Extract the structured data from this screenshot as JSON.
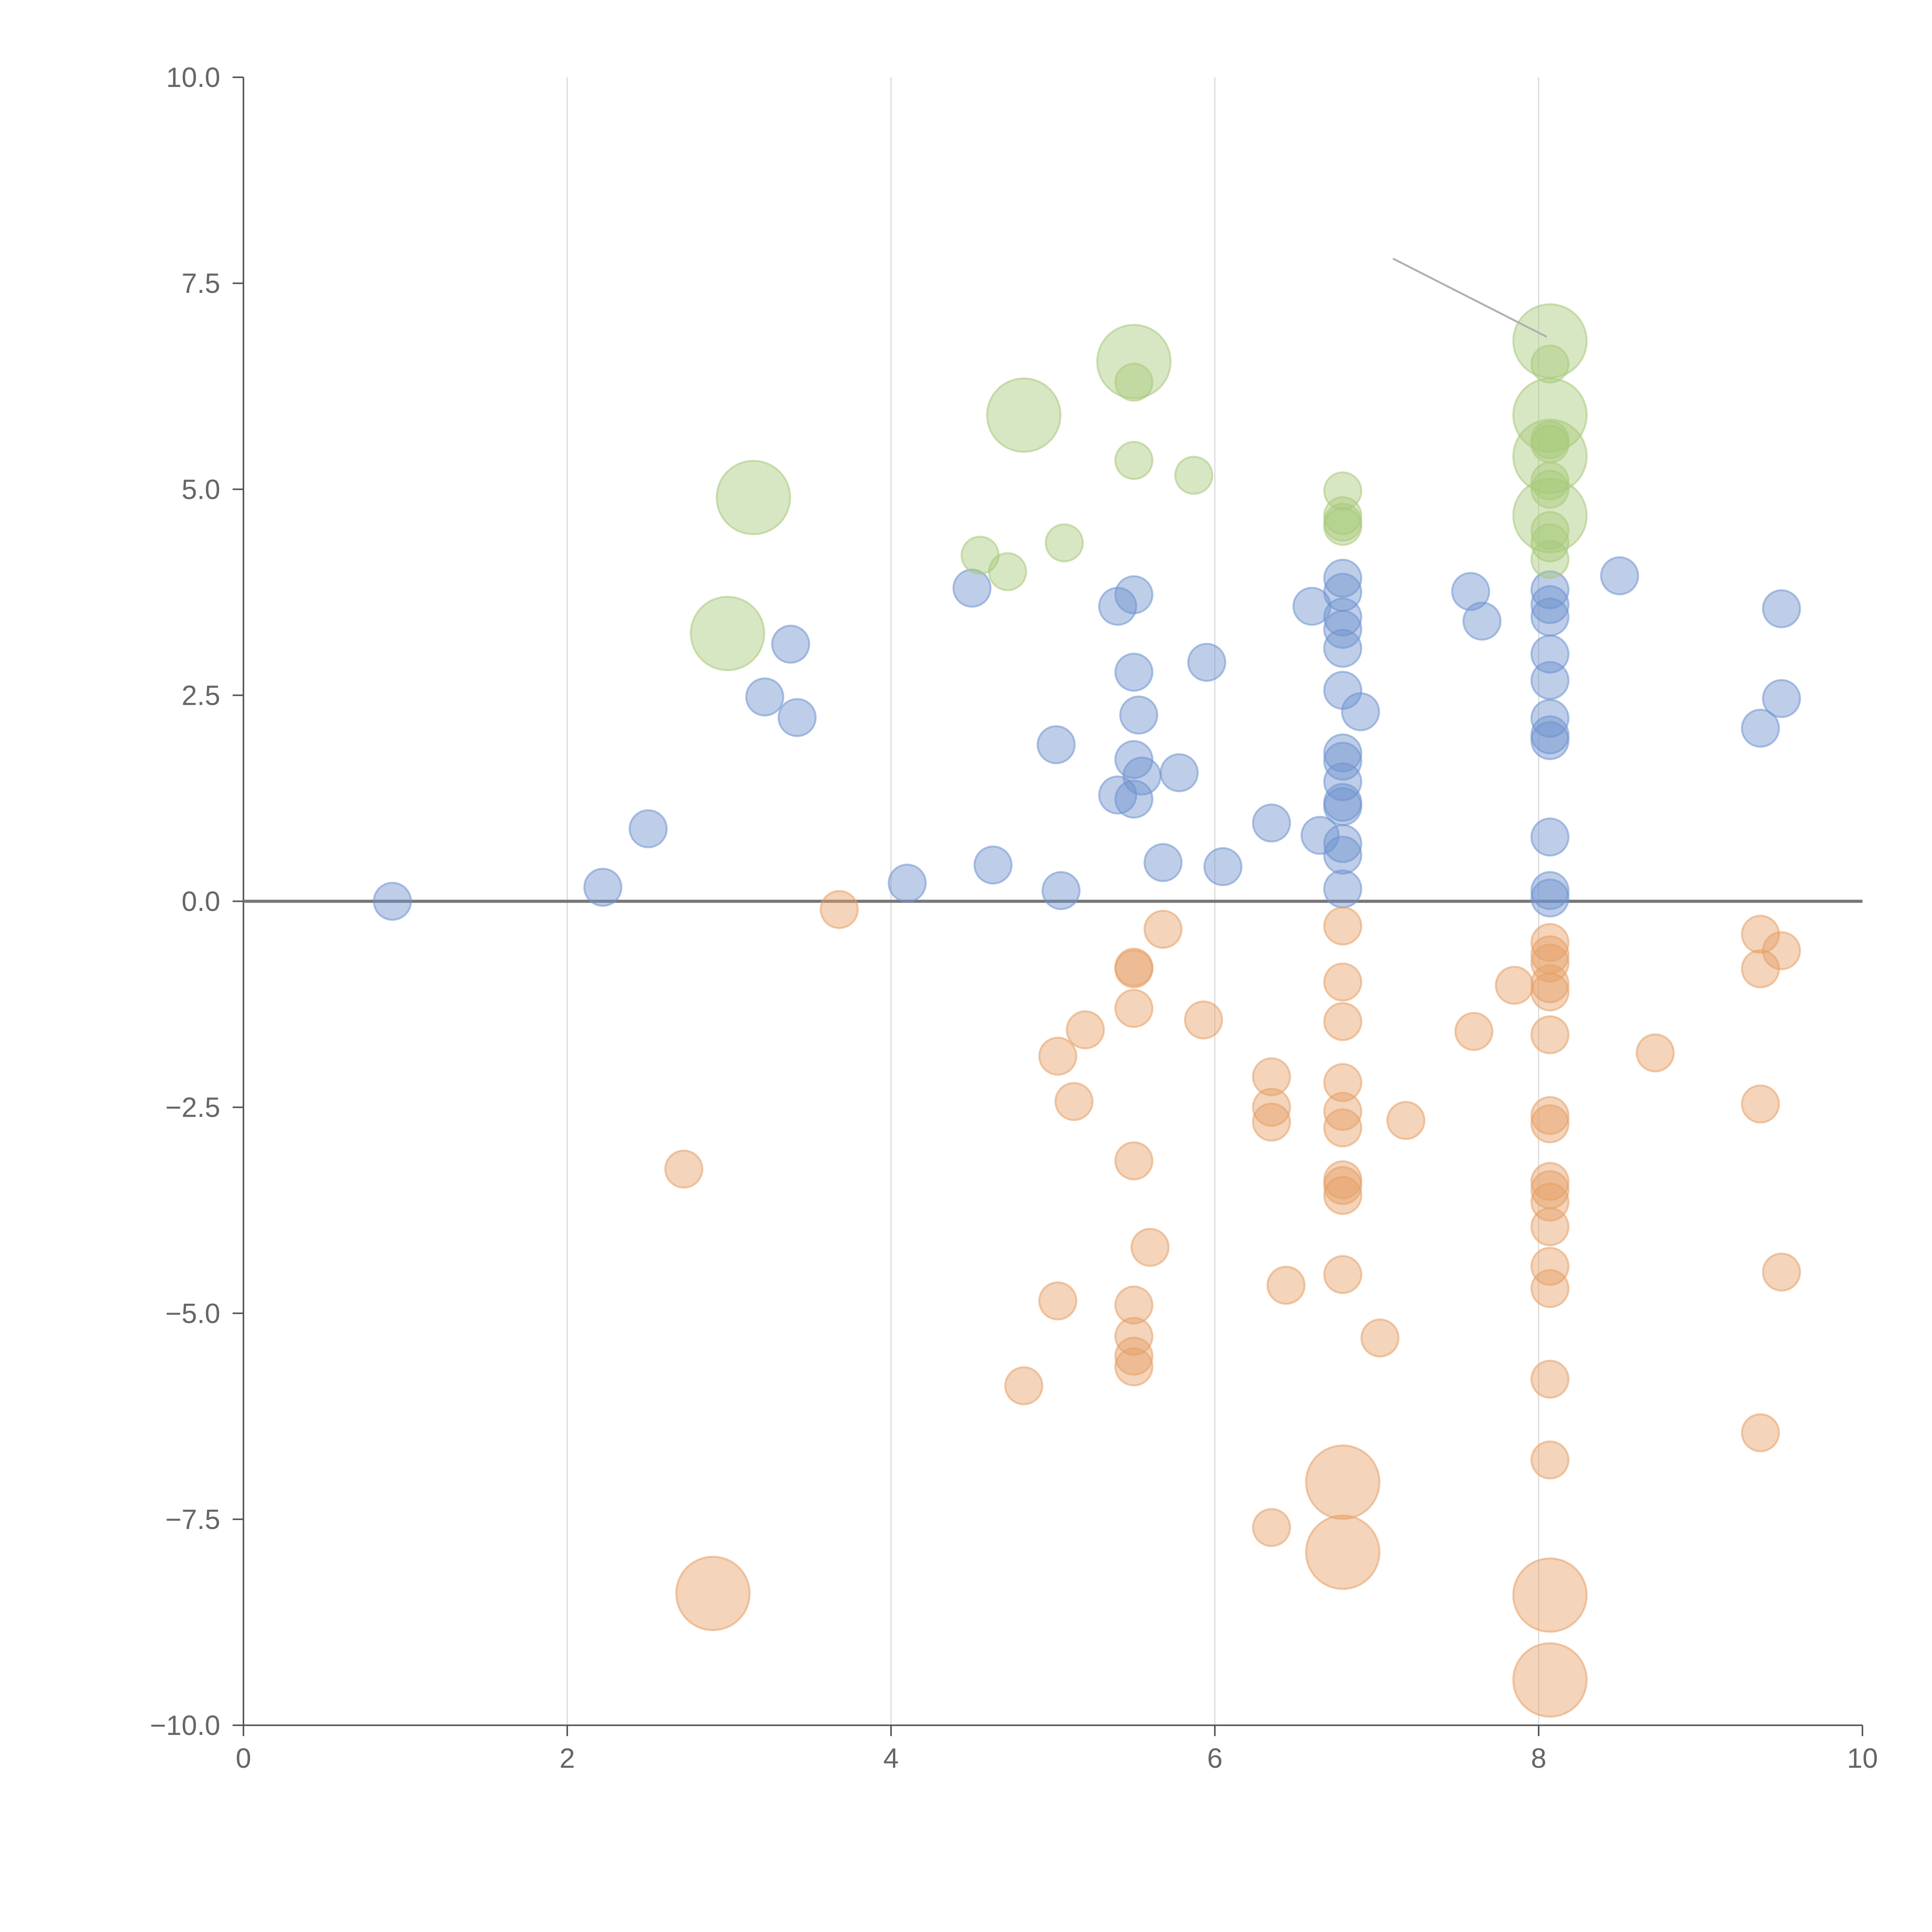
{
  "chart_data": {
    "type": "scatter",
    "title": "",
    "xlabel": "",
    "ylabel": "",
    "xlim": [
      0,
      10
    ],
    "ylim": [
      -10,
      10
    ],
    "xticks": [
      "0",
      "2",
      "4",
      "6",
      "8",
      "10"
    ],
    "yticks": [
      "10.0",
      "7.5",
      "5.0",
      "2.5",
      "0.0",
      "−2.5",
      "−5.0",
      "−7.5",
      "−10.0"
    ],
    "xtick_values": [
      0,
      2,
      4,
      6,
      8,
      10
    ],
    "ytick_values": [
      10,
      7.5,
      5,
      2.5,
      0,
      -2.5,
      -5,
      -7.5,
      -10
    ],
    "vertical_grid": true,
    "zero_line": true,
    "colors": {
      "blue": "#6f93cf",
      "orange": "#e6a067",
      "green": "#a9c97b",
      "axis": "#555555",
      "grid": "#d9d9d9"
    },
    "series": [
      {
        "name": "blue",
        "color": "#6f93cf",
        "points": [
          {
            "x": 0.92,
            "y": 0.0,
            "s": 1
          },
          {
            "x": 2.22,
            "y": 0.17,
            "s": 1
          },
          {
            "x": 2.5,
            "y": 0.88,
            "s": 1
          },
          {
            "x": 3.22,
            "y": 2.48,
            "s": 1
          },
          {
            "x": 3.38,
            "y": 3.12,
            "s": 1
          },
          {
            "x": 3.42,
            "y": 2.23,
            "s": 1
          },
          {
            "x": 4.1,
            "y": 0.22,
            "s": 1
          },
          {
            "x": 4.5,
            "y": 3.8,
            "s": 1
          },
          {
            "x": 4.63,
            "y": 0.44,
            "s": 1
          },
          {
            "x": 5.02,
            "y": 1.9,
            "s": 1
          },
          {
            "x": 5.05,
            "y": 0.13,
            "s": 1
          },
          {
            "x": 5.4,
            "y": 3.58,
            "s": 1
          },
          {
            "x": 5.5,
            "y": 3.72,
            "s": 1
          },
          {
            "x": 5.5,
            "y": 2.78,
            "s": 1
          },
          {
            "x": 5.53,
            "y": 2.26,
            "s": 1
          },
          {
            "x": 5.5,
            "y": 1.72,
            "s": 1
          },
          {
            "x": 5.55,
            "y": 1.52,
            "s": 1
          },
          {
            "x": 5.4,
            "y": 1.29,
            "s": 1
          },
          {
            "x": 5.5,
            "y": 1.24,
            "s": 1
          },
          {
            "x": 5.68,
            "y": 0.47,
            "s": 1
          },
          {
            "x": 5.78,
            "y": 1.56,
            "s": 1
          },
          {
            "x": 5.95,
            "y": 2.9,
            "s": 1
          },
          {
            "x": 6.05,
            "y": 0.42,
            "s": 1
          },
          {
            "x": 6.35,
            "y": 0.95,
            "s": 1
          },
          {
            "x": 6.6,
            "y": 3.58,
            "s": 1
          },
          {
            "x": 6.65,
            "y": 0.8,
            "s": 1
          },
          {
            "x": 6.79,
            "y": 3.92,
            "s": 1
          },
          {
            "x": 6.79,
            "y": 3.75,
            "s": 1
          },
          {
            "x": 6.79,
            "y": 3.45,
            "s": 1
          },
          {
            "x": 6.79,
            "y": 3.3,
            "s": 1
          },
          {
            "x": 6.79,
            "y": 3.07,
            "s": 1
          },
          {
            "x": 6.79,
            "y": 2.56,
            "s": 1
          },
          {
            "x": 6.9,
            "y": 2.3,
            "s": 1
          },
          {
            "x": 6.79,
            "y": 1.8,
            "s": 1
          },
          {
            "x": 6.79,
            "y": 1.7,
            "s": 1
          },
          {
            "x": 6.79,
            "y": 1.45,
            "s": 1
          },
          {
            "x": 6.79,
            "y": 1.2,
            "s": 1
          },
          {
            "x": 6.79,
            "y": 1.15,
            "s": 1
          },
          {
            "x": 6.79,
            "y": 0.7,
            "s": 1
          },
          {
            "x": 6.79,
            "y": 0.56,
            "s": 1
          },
          {
            "x": 6.79,
            "y": 0.15,
            "s": 1
          },
          {
            "x": 7.58,
            "y": 3.76,
            "s": 1
          },
          {
            "x": 7.65,
            "y": 3.4,
            "s": 1
          },
          {
            "x": 8.07,
            "y": 3.78,
            "s": 1
          },
          {
            "x": 8.07,
            "y": 3.6,
            "s": 1
          },
          {
            "x": 8.07,
            "y": 3.45,
            "s": 1
          },
          {
            "x": 8.07,
            "y": 3.0,
            "s": 1
          },
          {
            "x": 8.07,
            "y": 2.68,
            "s": 1
          },
          {
            "x": 8.07,
            "y": 2.22,
            "s": 1
          },
          {
            "x": 8.07,
            "y": 2.02,
            "s": 1
          },
          {
            "x": 8.07,
            "y": 1.95,
            "s": 1
          },
          {
            "x": 8.07,
            "y": 0.78,
            "s": 1
          },
          {
            "x": 8.07,
            "y": 0.13,
            "s": 1
          },
          {
            "x": 8.07,
            "y": 0.04,
            "s": 1
          },
          {
            "x": 8.5,
            "y": 3.95,
            "s": 1
          },
          {
            "x": 9.37,
            "y": 2.1,
            "s": 1
          },
          {
            "x": 9.5,
            "y": 3.55,
            "s": 1
          },
          {
            "x": 9.5,
            "y": 2.46,
            "s": 1
          }
        ]
      },
      {
        "name": "orange",
        "color": "#e6a067",
        "points": [
          {
            "x": 2.72,
            "y": -3.25,
            "s": 1
          },
          {
            "x": 2.9,
            "y": -8.4,
            "s": 2
          },
          {
            "x": 3.68,
            "y": -0.1,
            "s": 1
          },
          {
            "x": 4.82,
            "y": -5.88,
            "s": 1
          },
          {
            "x": 5.03,
            "y": -1.88,
            "s": 1
          },
          {
            "x": 5.03,
            "y": -4.85,
            "s": 1
          },
          {
            "x": 5.13,
            "y": -2.43,
            "s": 1
          },
          {
            "x": 5.2,
            "y": -1.56,
            "s": 1
          },
          {
            "x": 5.5,
            "y": -0.8,
            "s": 1
          },
          {
            "x": 5.5,
            "y": -0.82,
            "s": 1
          },
          {
            "x": 5.5,
            "y": -1.3,
            "s": 1
          },
          {
            "x": 5.5,
            "y": -3.15,
            "s": 1
          },
          {
            "x": 5.5,
            "y": -4.9,
            "s": 1
          },
          {
            "x": 5.5,
            "y": -5.28,
            "s": 1
          },
          {
            "x": 5.5,
            "y": -5.52,
            "s": 1
          },
          {
            "x": 5.5,
            "y": -5.65,
            "s": 1
          },
          {
            "x": 5.6,
            "y": -4.2,
            "s": 1
          },
          {
            "x": 5.68,
            "y": -0.34,
            "s": 1
          },
          {
            "x": 5.93,
            "y": -1.44,
            "s": 1
          },
          {
            "x": 6.35,
            "y": -2.13,
            "s": 1
          },
          {
            "x": 6.35,
            "y": -2.5,
            "s": 1
          },
          {
            "x": 6.35,
            "y": -2.68,
            "s": 1
          },
          {
            "x": 6.35,
            "y": -7.6,
            "s": 1
          },
          {
            "x": 6.44,
            "y": -4.66,
            "s": 1
          },
          {
            "x": 6.79,
            "y": -0.3,
            "s": 1
          },
          {
            "x": 6.79,
            "y": -0.98,
            "s": 1
          },
          {
            "x": 6.79,
            "y": -1.46,
            "s": 1
          },
          {
            "x": 6.79,
            "y": -2.2,
            "s": 1
          },
          {
            "x": 6.79,
            "y": -2.55,
            "s": 1
          },
          {
            "x": 6.79,
            "y": -2.75,
            "s": 1
          },
          {
            "x": 6.79,
            "y": -3.38,
            "s": 1
          },
          {
            "x": 6.79,
            "y": -3.45,
            "s": 1
          },
          {
            "x": 6.79,
            "y": -3.57,
            "s": 1
          },
          {
            "x": 6.79,
            "y": -4.53,
            "s": 1
          },
          {
            "x": 6.79,
            "y": -7.05,
            "s": 2
          },
          {
            "x": 6.79,
            "y": -7.9,
            "s": 2
          },
          {
            "x": 7.02,
            "y": -5.3,
            "s": 1
          },
          {
            "x": 7.18,
            "y": -2.66,
            "s": 1
          },
          {
            "x": 7.6,
            "y": -1.58,
            "s": 1
          },
          {
            "x": 7.85,
            "y": -1.02,
            "s": 1
          },
          {
            "x": 8.07,
            "y": -0.5,
            "s": 1
          },
          {
            "x": 8.07,
            "y": -0.65,
            "s": 1
          },
          {
            "x": 8.07,
            "y": -0.75,
            "s": 1
          },
          {
            "x": 8.07,
            "y": -1.0,
            "s": 1
          },
          {
            "x": 8.07,
            "y": -1.1,
            "s": 1
          },
          {
            "x": 8.07,
            "y": -1.62,
            "s": 1
          },
          {
            "x": 8.07,
            "y": -2.6,
            "s": 1
          },
          {
            "x": 8.07,
            "y": -2.7,
            "s": 1
          },
          {
            "x": 8.07,
            "y": -3.4,
            "s": 1
          },
          {
            "x": 8.07,
            "y": -3.5,
            "s": 1
          },
          {
            "x": 8.07,
            "y": -3.65,
            "s": 1
          },
          {
            "x": 8.07,
            "y": -3.95,
            "s": 1
          },
          {
            "x": 8.07,
            "y": -4.43,
            "s": 1
          },
          {
            "x": 8.07,
            "y": -4.7,
            "s": 1
          },
          {
            "x": 8.07,
            "y": -5.8,
            "s": 1
          },
          {
            "x": 8.07,
            "y": -6.78,
            "s": 1
          },
          {
            "x": 8.07,
            "y": -8.42,
            "s": 2
          },
          {
            "x": 8.07,
            "y": -9.45,
            "s": 2
          },
          {
            "x": 8.72,
            "y": -1.84,
            "s": 1
          },
          {
            "x": 9.37,
            "y": -0.4,
            "s": 1
          },
          {
            "x": 9.37,
            "y": -0.82,
            "s": 1
          },
          {
            "x": 9.37,
            "y": -2.46,
            "s": 1
          },
          {
            "x": 9.37,
            "y": -6.45,
            "s": 1
          },
          {
            "x": 9.5,
            "y": -0.6,
            "s": 1
          },
          {
            "x": 9.5,
            "y": -4.5,
            "s": 1
          }
        ]
      },
      {
        "name": "green",
        "color": "#a9c97b",
        "points": [
          {
            "x": 2.99,
            "y": 3.25,
            "s": 2
          },
          {
            "x": 3.15,
            "y": 4.9,
            "s": 2
          },
          {
            "x": 4.55,
            "y": 4.2,
            "s": 1
          },
          {
            "x": 4.72,
            "y": 4.0,
            "s": 1
          },
          {
            "x": 4.82,
            "y": 5.9,
            "s": 2
          },
          {
            "x": 5.07,
            "y": 4.35,
            "s": 1
          },
          {
            "x": 5.5,
            "y": 6.55,
            "s": 2
          },
          {
            "x": 5.5,
            "y": 6.3,
            "s": 1
          },
          {
            "x": 5.5,
            "y": 5.35,
            "s": 1
          },
          {
            "x": 5.87,
            "y": 5.17,
            "s": 1
          },
          {
            "x": 6.79,
            "y": 4.98,
            "s": 1
          },
          {
            "x": 6.79,
            "y": 4.68,
            "s": 1
          },
          {
            "x": 6.79,
            "y": 4.6,
            "s": 1
          },
          {
            "x": 6.79,
            "y": 4.55,
            "s": 1
          },
          {
            "x": 8.07,
            "y": 6.8,
            "s": 2
          },
          {
            "x": 8.07,
            "y": 6.52,
            "s": 1
          },
          {
            "x": 8.07,
            "y": 5.9,
            "s": 2
          },
          {
            "x": 8.07,
            "y": 5.6,
            "s": 1
          },
          {
            "x": 8.07,
            "y": 5.55,
            "s": 1
          },
          {
            "x": 8.07,
            "y": 5.4,
            "s": 2
          },
          {
            "x": 8.07,
            "y": 5.1,
            "s": 1
          },
          {
            "x": 8.07,
            "y": 5.0,
            "s": 1
          },
          {
            "x": 8.07,
            "y": 4.68,
            "s": 2
          },
          {
            "x": 8.07,
            "y": 4.5,
            "s": 1
          },
          {
            "x": 8.07,
            "y": 4.35,
            "s": 1
          },
          {
            "x": 8.07,
            "y": 4.15,
            "s": 1
          }
        ]
      }
    ],
    "annotations": [
      {
        "type": "line",
        "from": [
          7.1,
          7.8
        ],
        "to": [
          8.05,
          6.85
        ]
      }
    ]
  }
}
